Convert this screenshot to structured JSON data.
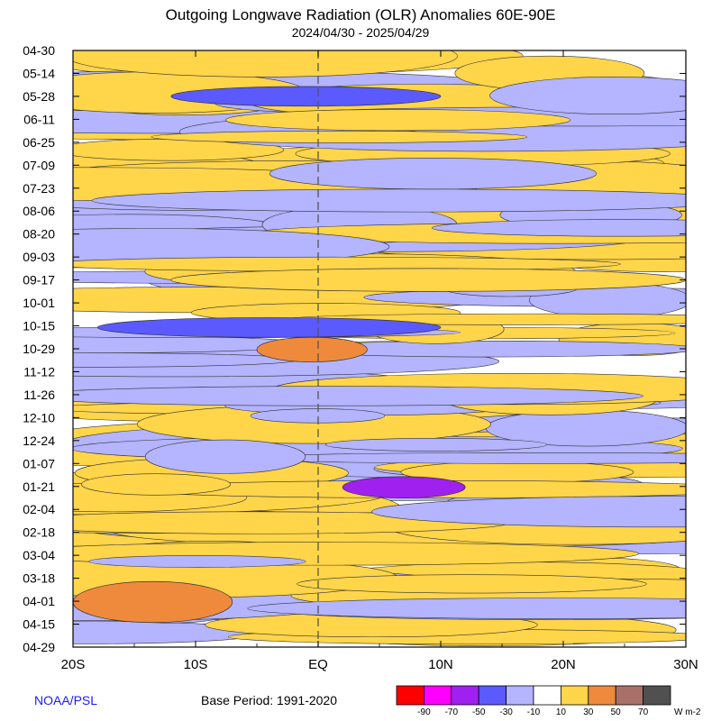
{
  "chart_data": {
    "type": "heatmap",
    "title": "Outgoing Longwave Radiation (OLR) Anomalies 60E-90E",
    "subtitle": "2024/04/30 - 2025/04/29",
    "x_ticks": [
      "20S",
      "10S",
      "EQ",
      "10N",
      "20N",
      "30N"
    ],
    "x_tick_values": [
      -20,
      -10,
      0,
      10,
      20,
      30
    ],
    "y_ticks": [
      "04-30",
      "05-14",
      "05-28",
      "06-11",
      "06-25",
      "07-09",
      "07-23",
      "08-06",
      "08-20",
      "09-03",
      "09-17",
      "10-01",
      "10-15",
      "10-29",
      "11-12",
      "11-26",
      "12-10",
      "12-24",
      "01-07",
      "01-21",
      "02-04",
      "02-18",
      "03-04",
      "03-18",
      "04-01",
      "04-15",
      "04-29"
    ],
    "xlim": [
      -20,
      30
    ],
    "ylim": [
      "2024-04-30",
      "2025-04-29"
    ],
    "equator_line": true,
    "colorbar": {
      "ticks": [
        "-90",
        "-70",
        "-50",
        "-30",
        "-10",
        "10",
        "30",
        "50",
        "70"
      ],
      "units": "W m-2",
      "colors": [
        "#ff0000",
        "#ff00ff",
        "#a020f0",
        "#5a5aff",
        "#b4b4ff",
        "#ffffff",
        "#ffd54a",
        "#ef8a3c",
        "#a87068",
        "#505050"
      ]
    },
    "features": [
      {
        "lat_from": -20,
        "lat_to": -7,
        "date_from": "2025-03-20",
        "date_to": "2025-04-14",
        "anomaly": 35,
        "label": "positive anomaly"
      },
      {
        "lat_from": -5,
        "lat_to": 4,
        "date_from": "2024-10-22",
        "date_to": "2024-11-06",
        "anomaly": 35,
        "label": "positive anomaly"
      },
      {
        "lat_from": 2,
        "lat_to": 12,
        "date_from": "2025-01-15",
        "date_to": "2025-01-28",
        "anomaly": -55,
        "label": "negative anomaly"
      },
      {
        "lat_from": -12,
        "lat_to": 10,
        "date_from": "2024-05-22",
        "date_to": "2024-06-03",
        "anomaly": -40,
        "label": "negative anomaly"
      },
      {
        "lat_from": -18,
        "lat_to": 10,
        "date_from": "2024-10-10",
        "date_to": "2024-10-22",
        "anomaly": -35,
        "label": "negative anomaly"
      },
      {
        "lat_from": -12,
        "lat_to": 30,
        "date_from": "2024-09-10",
        "date_to": "2024-09-24",
        "anomaly": 20,
        "label": "positive anomaly"
      }
    ]
  },
  "footer": {
    "source": "NOAA/PSL",
    "base_period": "Base Period: 1991-2020"
  }
}
